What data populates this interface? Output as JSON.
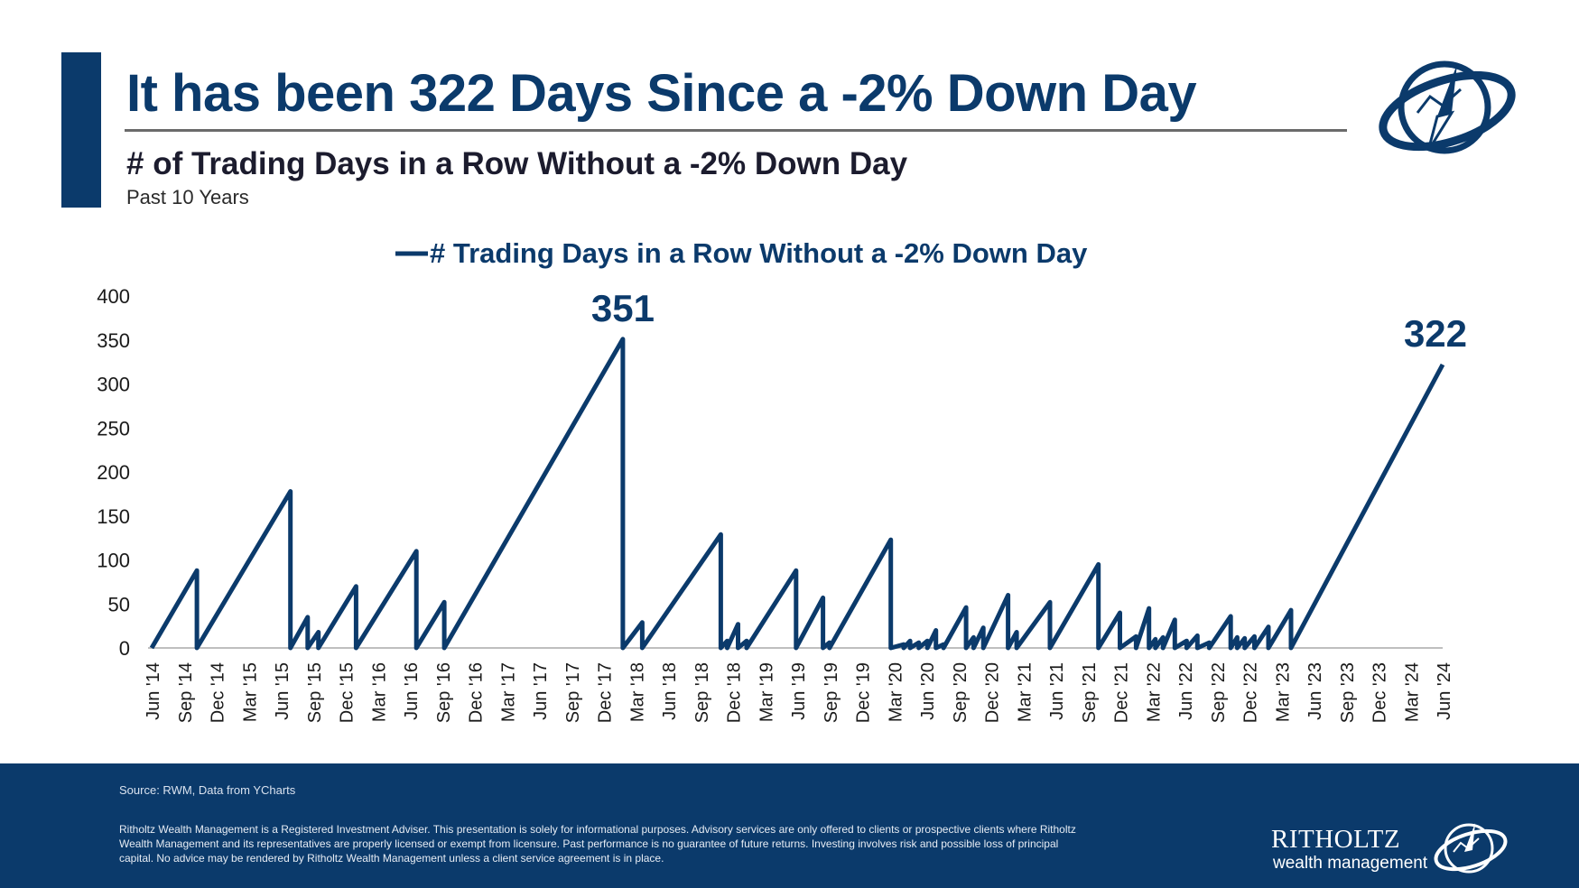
{
  "header": {
    "title": "It has been 322 Days Since a -2% Down Day",
    "subtitle": "# of Trading Days in a Row Without a -2% Down Day",
    "period": "Past 10 Years"
  },
  "colors": {
    "brand_navy": "#0b3a6b",
    "line": "#0b3a6b",
    "text_dark": "#1c1c2e"
  },
  "chart_data": {
    "type": "line",
    "title": "",
    "legend": "# Trading Days in a Row Without a -2% Down Day",
    "legend_position": "top-center",
    "xlabel": "",
    "ylabel": "",
    "ylim": [
      0,
      400
    ],
    "yticks": [
      0,
      50,
      100,
      150,
      200,
      250,
      300,
      350,
      400
    ],
    "grid": false,
    "x_range_months": [
      0,
      120
    ],
    "x_ticks": [
      {
        "m": 0,
        "label": "Jun '14"
      },
      {
        "m": 3,
        "label": "Sep '14"
      },
      {
        "m": 6,
        "label": "Dec '14"
      },
      {
        "m": 9,
        "label": "Mar '15"
      },
      {
        "m": 12,
        "label": "Jun '15"
      },
      {
        "m": 15,
        "label": "Sep '15"
      },
      {
        "m": 18,
        "label": "Dec '15"
      },
      {
        "m": 21,
        "label": "Mar '16"
      },
      {
        "m": 24,
        "label": "Jun '16"
      },
      {
        "m": 27,
        "label": "Sep '16"
      },
      {
        "m": 30,
        "label": "Dec '16"
      },
      {
        "m": 33,
        "label": "Mar '17"
      },
      {
        "m": 36,
        "label": "Jun '17"
      },
      {
        "m": 39,
        "label": "Sep '17"
      },
      {
        "m": 42,
        "label": "Dec '17"
      },
      {
        "m": 45,
        "label": "Mar '18"
      },
      {
        "m": 48,
        "label": "Jun '18"
      },
      {
        "m": 51,
        "label": "Sep '18"
      },
      {
        "m": 54,
        "label": "Dec '18"
      },
      {
        "m": 57,
        "label": "Mar '19"
      },
      {
        "m": 60,
        "label": "Jun '19"
      },
      {
        "m": 63,
        "label": "Sep '19"
      },
      {
        "m": 66,
        "label": "Dec '19"
      },
      {
        "m": 69,
        "label": "Mar '20"
      },
      {
        "m": 72,
        "label": "Jun '20"
      },
      {
        "m": 75,
        "label": "Sep '20"
      },
      {
        "m": 78,
        "label": "Dec '20"
      },
      {
        "m": 81,
        "label": "Mar '21"
      },
      {
        "m": 84,
        "label": "Jun '21"
      },
      {
        "m": 87,
        "label": "Sep '21"
      },
      {
        "m": 90,
        "label": "Dec '21"
      },
      {
        "m": 93,
        "label": "Mar '22"
      },
      {
        "m": 96,
        "label": "Jun '22"
      },
      {
        "m": 99,
        "label": "Sep '22"
      },
      {
        "m": 102,
        "label": "Dec '22"
      },
      {
        "m": 105,
        "label": "Mar '23"
      },
      {
        "m": 108,
        "label": "Jun '23"
      },
      {
        "m": 111,
        "label": "Sep '23"
      },
      {
        "m": 114,
        "label": "Dec '23"
      },
      {
        "m": 117,
        "label": "Mar '24"
      },
      {
        "m": 120,
        "label": "Jun '24"
      }
    ],
    "series": [
      {
        "name": "# Trading Days in a Row Without a -2% Down Day",
        "points": [
          [
            0,
            0
          ],
          [
            4.2,
            88
          ],
          [
            4.2,
            0
          ],
          [
            12.9,
            178
          ],
          [
            12.9,
            0
          ],
          [
            14.5,
            35
          ],
          [
            14.5,
            0
          ],
          [
            15.5,
            18
          ],
          [
            15.5,
            0
          ],
          [
            19,
            70
          ],
          [
            19,
            0
          ],
          [
            24.6,
            110
          ],
          [
            24.6,
            0
          ],
          [
            27.2,
            52
          ],
          [
            27.2,
            0
          ],
          [
            43.8,
            351
          ],
          [
            43.8,
            0
          ],
          [
            45.6,
            29
          ],
          [
            45.6,
            0
          ],
          [
            52.9,
            129
          ],
          [
            52.9,
            0
          ],
          [
            53.5,
            8
          ],
          [
            53.5,
            0
          ],
          [
            54.5,
            27
          ],
          [
            54.5,
            0
          ],
          [
            55.3,
            8
          ],
          [
            55.3,
            0
          ],
          [
            59.9,
            88
          ],
          [
            59.9,
            0
          ],
          [
            62.4,
            57
          ],
          [
            62.4,
            0
          ],
          [
            63,
            6
          ],
          [
            63,
            0
          ],
          [
            68.7,
            123
          ],
          [
            68.7,
            0
          ],
          [
            69.9,
            4
          ],
          [
            69.9,
            0
          ],
          [
            70.5,
            8
          ],
          [
            70.5,
            0
          ],
          [
            71.3,
            6
          ],
          [
            71.3,
            0
          ],
          [
            72.1,
            8
          ],
          [
            72.1,
            0
          ],
          [
            72.9,
            20
          ],
          [
            72.9,
            0
          ],
          [
            73.6,
            4
          ],
          [
            73.6,
            0
          ],
          [
            75.7,
            46
          ],
          [
            75.7,
            0
          ],
          [
            76.4,
            12
          ],
          [
            76.4,
            0
          ],
          [
            77.3,
            23
          ],
          [
            77.3,
            0
          ],
          [
            79.6,
            60
          ],
          [
            79.6,
            0
          ],
          [
            80.4,
            18
          ],
          [
            80.4,
            0
          ],
          [
            83.5,
            52
          ],
          [
            83.5,
            0
          ],
          [
            88,
            95
          ],
          [
            88,
            0
          ],
          [
            90,
            40
          ],
          [
            90,
            0
          ],
          [
            91.5,
            13
          ],
          [
            91.5,
            0
          ],
          [
            92.7,
            45
          ],
          [
            92.7,
            0
          ],
          [
            93.3,
            10
          ],
          [
            93.3,
            0
          ],
          [
            94,
            12
          ],
          [
            94,
            0
          ],
          [
            95.1,
            32
          ],
          [
            95.1,
            0
          ],
          [
            96.2,
            8
          ],
          [
            96.2,
            0
          ],
          [
            97.2,
            14
          ],
          [
            97.2,
            0
          ],
          [
            98.3,
            6
          ],
          [
            98.3,
            0
          ],
          [
            100.3,
            36
          ],
          [
            100.3,
            0
          ],
          [
            100.9,
            12
          ],
          [
            100.9,
            0
          ],
          [
            101.6,
            11
          ],
          [
            101.6,
            0
          ],
          [
            102.5,
            13
          ],
          [
            102.5,
            0
          ],
          [
            103.8,
            24
          ],
          [
            103.8,
            0
          ],
          [
            105.9,
            43
          ],
          [
            105.9,
            0
          ],
          [
            120,
            322
          ]
        ]
      }
    ],
    "annotations": [
      {
        "label": "351",
        "m": 43.8,
        "value": 351
      },
      {
        "label": "322",
        "m": 120,
        "value": 322
      }
    ]
  },
  "footer": {
    "source": "Source: RWM, Data from YCharts",
    "disclaimer": "Ritholtz Wealth Management is a Registered Investment Adviser. This presentation is solely for informational purposes. Advisory services are only offered to clients or prospective clients where Ritholtz Wealth Management and its representatives are properly licensed or exempt from licensure. Past performance is no guarantee of future returns. Investing involves risk and possible loss of principal capital. No advice may be rendered by Ritholtz Wealth Management unless a client service agreement is in place.",
    "brand_name": "RITHOLTZ",
    "brand_sub": "wealth management",
    "logo_icon": "compass-globe-icon"
  }
}
